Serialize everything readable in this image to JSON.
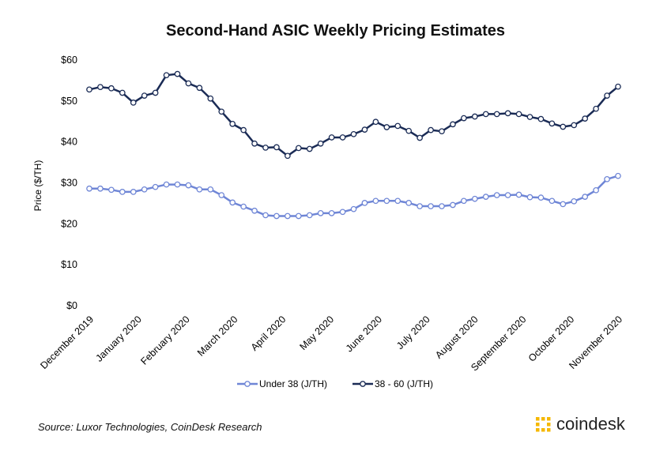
{
  "chart_data": {
    "type": "line",
    "title": "Second-Hand ASIC Weekly Pricing Estimates",
    "ylabel": "Price ($/TH)",
    "xlabel": "",
    "ylim": [
      0,
      60
    ],
    "yticks": [
      "$0",
      "$10",
      "$20",
      "$30",
      "$40",
      "$50",
      "$60"
    ],
    "ytick_values": [
      0,
      10,
      20,
      30,
      40,
      50,
      60
    ],
    "x_tick_labels": [
      "December 2019",
      "January 2020",
      "February 2020",
      "March 2020",
      "April 2020",
      "May 2020",
      "June 2020",
      "July 2020",
      "August 2020",
      "September 2020",
      "October 2020",
      "November 2020"
    ],
    "grid": false,
    "legend_position": "bottom",
    "series": [
      {
        "name": "Under 38 (J/TH)",
        "color": "#6f86d6",
        "values": [
          28.6,
          28.6,
          28.3,
          27.8,
          27.8,
          28.4,
          29.0,
          29.6,
          29.6,
          29.4,
          28.4,
          28.4,
          27.0,
          25.2,
          24.2,
          23.2,
          22.1,
          21.9,
          21.9,
          21.9,
          22.1,
          22.6,
          22.6,
          22.9,
          23.6,
          25.1,
          25.6,
          25.6,
          25.6,
          25.1,
          24.3,
          24.3,
          24.3,
          24.6,
          25.6,
          26.1,
          26.6,
          27.0,
          27.0,
          27.1,
          26.5,
          26.4,
          25.6,
          24.8,
          25.5,
          26.6,
          28.2,
          30.9,
          31.7
        ]
      },
      {
        "name": "38 - 60 (J/TH)",
        "color": "#1a2b55",
        "values": [
          52.8,
          53.4,
          53.1,
          52.0,
          49.6,
          51.3,
          52.0,
          56.3,
          56.6,
          54.3,
          53.2,
          50.6,
          47.4,
          44.4,
          42.9,
          39.6,
          38.6,
          38.7,
          36.6,
          38.5,
          38.3,
          39.6,
          41.1,
          41.1,
          41.9,
          43.0,
          44.9,
          43.6,
          43.9,
          42.7,
          41.0,
          42.9,
          42.6,
          44.3,
          45.8,
          46.2,
          46.8,
          46.8,
          47.0,
          46.8,
          46.1,
          45.6,
          44.5,
          43.7,
          44.1,
          45.7,
          48.1,
          51.3,
          53.5
        ]
      }
    ]
  },
  "footer": {
    "source": "Source: Luxor Technologies, CoinDesk Research",
    "brand": "coindesk",
    "brand_color": "#f5b800"
  }
}
